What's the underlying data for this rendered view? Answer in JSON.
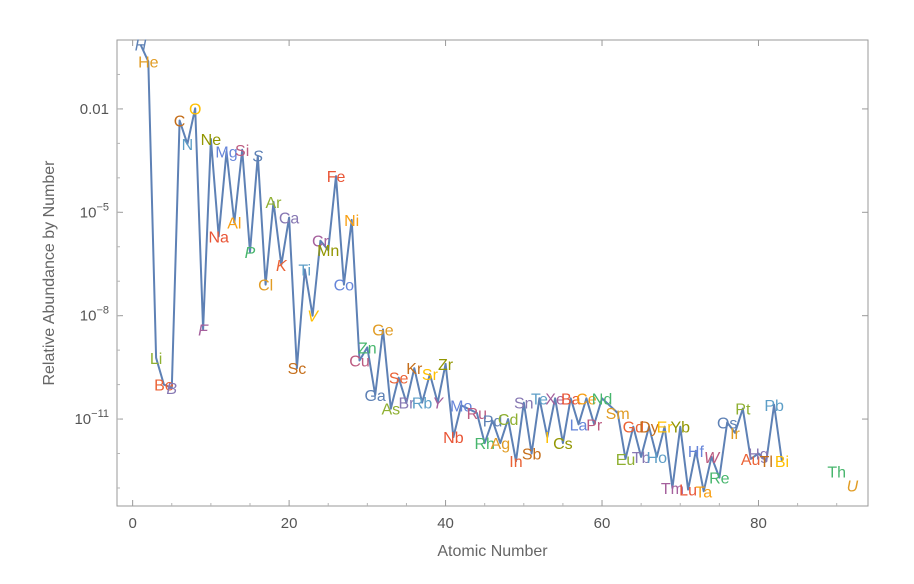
{
  "chart_data": {
    "type": "line",
    "title": "",
    "xlabel": "Atomic Number",
    "ylabel": "Relative Abundance by Number",
    "xlim": [
      -2,
      94
    ],
    "x_ticks": [
      0,
      20,
      40,
      60,
      80
    ],
    "y_scale": "log",
    "ylim": [
      3e-14,
      1
    ],
    "y_ticks": [
      {
        "value": 0.01,
        "label": "0.01"
      },
      {
        "value": 1e-05,
        "label": "10",
        "exp": "−5"
      },
      {
        "value": 1e-08,
        "label": "10",
        "exp": "−8"
      },
      {
        "value": 1e-11,
        "label": "10",
        "exp": "−11"
      }
    ],
    "line_color": "#5E81B5",
    "frame": true,
    "grid": false,
    "series": [
      {
        "values": [
          {
            "z": 1,
            "s": "H",
            "y": 0.739
          },
          {
            "z": 2,
            "s": "He",
            "y": 0.24
          },
          {
            "z": 3,
            "s": "Li",
            "y": 6e-10
          },
          {
            "z": 4,
            "s": "Be",
            "y": 1e-10
          },
          {
            "z": 5,
            "s": "B",
            "y": 8e-11
          },
          {
            "z": 6,
            "s": "C",
            "y": 0.0046
          },
          {
            "z": 7,
            "s": "N",
            "y": 0.00096
          },
          {
            "z": 8,
            "s": "O",
            "y": 0.0104
          },
          {
            "z": 9,
            "s": "F",
            "y": 4e-09
          },
          {
            "z": 10,
            "s": "Ne",
            "y": 0.00134
          },
          {
            "z": 11,
            "s": "Na",
            "y": 2e-06
          },
          {
            "z": 12,
            "s": "Mg",
            "y": 0.00058
          },
          {
            "z": 13,
            "s": "Al",
            "y": 5e-06
          },
          {
            "z": 14,
            "s": "Si",
            "y": 0.00065
          },
          {
            "z": 15,
            "s": "P",
            "y": 7e-07
          },
          {
            "z": 16,
            "s": "S",
            "y": 0.00044
          },
          {
            "z": 17,
            "s": "Cl",
            "y": 8e-08
          },
          {
            "z": 18,
            "s": "Ar",
            "y": 2e-05
          },
          {
            "z": 19,
            "s": "K",
            "y": 3e-07
          },
          {
            "z": 20,
            "s": "Ca",
            "y": 7e-06
          },
          {
            "z": 21,
            "s": "Sc",
            "y": 3e-10
          },
          {
            "z": 22,
            "s": "Ti",
            "y": 2.2e-07
          },
          {
            "z": 23,
            "s": "V",
            "y": 1e-08
          },
          {
            "z": 24,
            "s": "Cr",
            "y": 1.5e-06
          },
          {
            "z": 25,
            "s": "Mn",
            "y": 8e-07
          },
          {
            "z": 26,
            "s": "Fe",
            "y": 0.000112
          },
          {
            "z": 27,
            "s": "Co",
            "y": 8e-08
          },
          {
            "z": 28,
            "s": "Ni",
            "y": 6e-06
          },
          {
            "z": 29,
            "s": "Cu",
            "y": 5e-10
          },
          {
            "z": 30,
            "s": "Zn",
            "y": 1.2e-09
          },
          {
            "z": 31,
            "s": "Ga",
            "y": 5e-11
          },
          {
            "z": 32,
            "s": "Ge",
            "y": 4e-09
          },
          {
            "z": 33,
            "s": "As",
            "y": 2e-11
          },
          {
            "z": 34,
            "s": "Se",
            "y": 1.6e-10
          },
          {
            "z": 35,
            "s": "Br",
            "y": 3e-11
          },
          {
            "z": 36,
            "s": "Kr",
            "y": 3e-10
          },
          {
            "z": 37,
            "s": "Rb",
            "y": 3e-11
          },
          {
            "z": 38,
            "s": "Sr",
            "y": 2e-10
          },
          {
            "z": 39,
            "s": "Y",
            "y": 3e-11
          },
          {
            "z": 40,
            "s": "Zr",
            "y": 4e-10
          },
          {
            "z": 41,
            "s": "Nb",
            "y": 3e-12
          },
          {
            "z": 42,
            "s": "Mo",
            "y": 2.5e-11
          },
          {
            "z": 44,
            "s": "Ru",
            "y": 1.5e-11
          },
          {
            "z": 45,
            "s": "Rh",
            "y": 2e-12
          },
          {
            "z": 46,
            "s": "Pd",
            "y": 9e-12
          },
          {
            "z": 47,
            "s": "Ag",
            "y": 2e-12
          },
          {
            "z": 48,
            "s": "Cd",
            "y": 1e-11
          },
          {
            "z": 49,
            "s": "In",
            "y": 6e-13
          },
          {
            "z": 50,
            "s": "Sn",
            "y": 3e-11
          },
          {
            "z": 51,
            "s": "Sb",
            "y": 1e-12
          },
          {
            "z": 52,
            "s": "Te",
            "y": 4e-11
          },
          {
            "z": 53,
            "s": "I",
            "y": 3e-12
          },
          {
            "z": 54,
            "s": "Xe",
            "y": 4e-11
          },
          {
            "z": 55,
            "s": "Cs",
            "y": 2e-12
          },
          {
            "z": 56,
            "s": "Ba",
            "y": 4e-11
          },
          {
            "z": 57,
            "s": "La",
            "y": 7e-12
          },
          {
            "z": 58,
            "s": "Ce",
            "y": 4e-11
          },
          {
            "z": 59,
            "s": "Pr",
            "y": 7e-12
          },
          {
            "z": 60,
            "s": "Nd",
            "y": 4e-11
          },
          {
            "z": 62,
            "s": "Sm",
            "y": 1.5e-11
          },
          {
            "z": 63,
            "s": "Eu",
            "y": 7e-13
          },
          {
            "z": 64,
            "s": "Gd",
            "y": 6e-12
          },
          {
            "z": 65,
            "s": "Tb",
            "y": 8e-13
          },
          {
            "z": 66,
            "s": "Dy",
            "y": 6e-12
          },
          {
            "z": 67,
            "s": "Ho",
            "y": 8e-13
          },
          {
            "z": 68,
            "s": "Er",
            "y": 6e-12
          },
          {
            "z": 69,
            "s": "Tm",
            "y": 1e-13
          },
          {
            "z": 70,
            "s": "Yb",
            "y": 6e-12
          },
          {
            "z": 71,
            "s": "Lu",
            "y": 9e-14
          },
          {
            "z": 72,
            "s": "Hf",
            "y": 1.2e-12
          },
          {
            "z": 73,
            "s": "Ta",
            "y": 8e-14
          },
          {
            "z": 74,
            "s": "W",
            "y": 8e-13
          },
          {
            "z": 75,
            "s": "Re",
            "y": 2e-13
          },
          {
            "z": 76,
            "s": "Os",
            "y": 8e-12
          },
          {
            "z": 77,
            "s": "Ir",
            "y": 4e-12
          },
          {
            "z": 78,
            "s": "Pt",
            "y": 2e-11
          },
          {
            "z": 79,
            "s": "Au",
            "y": 7e-13
          },
          {
            "z": 80,
            "s": "Hg",
            "y": 1e-12
          },
          {
            "z": 81,
            "s": "Tl",
            "y": 6e-13
          },
          {
            "z": 82,
            "s": "Pb",
            "y": 2.6e-11
          },
          {
            "z": 83,
            "s": "Bi",
            "y": 6e-13
          }
        ]
      }
    ],
    "unconnected_points": [
      {
        "z": 90,
        "s": "Th",
        "y": 3e-13
      },
      {
        "z": 92,
        "s": "U",
        "y": 1.2e-13
      }
    ],
    "label_colors": {
      "H": "#5E81B5",
      "He": "#E19C24",
      "Li": "#8FB032",
      "Be": "#EB6235",
      "B": "#8778B3",
      "C": "#C56E1A",
      "N": "#5D9EC7",
      "O": "#FFBF00",
      "F": "#A5609D",
      "Ne": "#929600",
      "Na": "#E95536",
      "Mg": "#6685D9",
      "Al": "#F89F13",
      "Si": "#BC5B80",
      "P": "#47B66D",
      "S": "#5E81B5",
      "Cl": "#E19C24",
      "Ar": "#8FB032",
      "K": "#EB6235",
      "Ca": "#8778B3",
      "Sc": "#C56E1A",
      "Ti": "#5D9EC7",
      "V": "#FFBF00",
      "Cr": "#A5609D",
      "Mn": "#929600",
      "Fe": "#E95536",
      "Co": "#6685D9",
      "Ni": "#F89F13",
      "Cu": "#BC5B80",
      "Zn": "#47B66D",
      "Ga": "#5E81B5",
      "Ge": "#E19C24",
      "As": "#8FB032",
      "Se": "#EB6235",
      "Br": "#8778B3",
      "Kr": "#C56E1A",
      "Rb": "#5D9EC7",
      "Sr": "#FFBF00",
      "Y": "#A5609D",
      "Zr": "#929600",
      "Nb": "#E95536",
      "Mo": "#6685D9",
      "Ru": "#BC5B80",
      "Rh": "#47B66D",
      "Pd": "#5E81B5",
      "Ag": "#E19C24",
      "Cd": "#8FB032",
      "In": "#EB6235",
      "Sn": "#8778B3",
      "Sb": "#C56E1A",
      "Te": "#5D9EC7",
      "I": "#FFBF00",
      "Xe": "#A5609D",
      "Cs": "#929600",
      "Ba": "#E95536",
      "La": "#6685D9",
      "Ce": "#F89F13",
      "Pr": "#BC5B80",
      "Nd": "#47B66D",
      "Sm": "#E19C24",
      "Eu": "#8FB032",
      "Gd": "#EB6235",
      "Tb": "#8778B3",
      "Dy": "#C56E1A",
      "Ho": "#5D9EC7",
      "Er": "#FFBF00",
      "Tm": "#A5609D",
      "Yb": "#929600",
      "Lu": "#E95536",
      "Hf": "#6685D9",
      "Ta": "#F89F13",
      "W": "#BC5B80",
      "Re": "#47B66D",
      "Os": "#5E81B5",
      "Ir": "#E19C24",
      "Pt": "#8FB032",
      "Au": "#EB6235",
      "Hg": "#8778B3",
      "Tl": "#C56E1A",
      "Pb": "#5D9EC7",
      "Bi": "#FFBF00",
      "Th": "#47B66D",
      "U": "#E19C24"
    },
    "italic_labels": [
      "H",
      "B",
      "F",
      "P",
      "S",
      "K",
      "V",
      "Y",
      "W",
      "U"
    ]
  }
}
